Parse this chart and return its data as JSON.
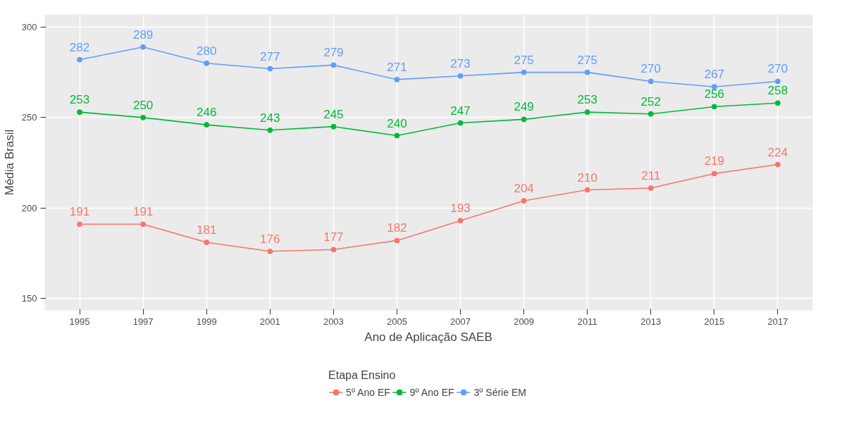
{
  "chart_data": {
    "type": "line",
    "xlabel": "Ano de Aplicação SAEB",
    "ylabel": "Média Brasil",
    "legend_title": "Etapa Ensino",
    "x": [
      1995,
      1997,
      1999,
      2001,
      2003,
      2005,
      2007,
      2009,
      2011,
      2013,
      2015,
      2017
    ],
    "series": [
      {
        "name": "5º Ano EF",
        "color": "#f8766d",
        "values": [
          191,
          191,
          181,
          176,
          177,
          182,
          193,
          204,
          210,
          211,
          219,
          224
        ]
      },
      {
        "name": "9º Ano EF",
        "color": "#00ba38",
        "values": [
          253,
          250,
          246,
          243,
          245,
          240,
          247,
          249,
          253,
          252,
          256,
          258
        ]
      },
      {
        "name": "3º Série EM",
        "color": "#619cff",
        "values": [
          282,
          289,
          280,
          277,
          279,
          271,
          273,
          275,
          275,
          270,
          267,
          270
        ]
      }
    ],
    "xlim": [
      1993.9,
      2018.1
    ],
    "xticks": [
      1995,
      1997,
      1999,
      2001,
      2003,
      2005,
      2007,
      2009,
      2011,
      2013,
      2015,
      2017
    ],
    "ylim": [
      143.4,
      307
    ],
    "yticks": [
      150,
      200,
      250,
      300
    ],
    "grid": true,
    "legend": "bottom",
    "marker": "circle",
    "line_style": "solid",
    "data_labels": true
  }
}
